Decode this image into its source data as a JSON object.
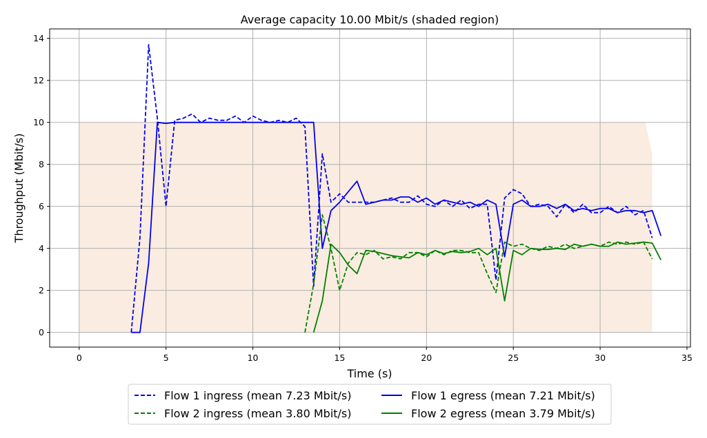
{
  "chart_data": {
    "type": "line",
    "title": "Average capacity 10.00 Mbit/s (shaded region)",
    "xlabel": "Time (s)",
    "ylabel": "Throughput (Mbit/s)",
    "xlim": [
      -1.7,
      35.2
    ],
    "ylim": [
      -0.7,
      14.45
    ],
    "xticks": [
      0,
      5,
      10,
      15,
      20,
      25,
      30,
      35
    ],
    "yticks": [
      0,
      2,
      4,
      6,
      8,
      10,
      12,
      14
    ],
    "grid": true,
    "legend_position": "bottom, below axes, two columns",
    "capacity_region": {
      "color": "#faece0",
      "points": [
        [
          0,
          0
        ],
        [
          0,
          10
        ],
        [
          32.6,
          10
        ],
        [
          33.0,
          8.5
        ],
        [
          33.0,
          0
        ]
      ]
    },
    "series": [
      {
        "name": "Flow 1 ingress (mean 7.23 Mbit/s)",
        "color": "#0000ee",
        "dashed": true,
        "points": [
          [
            3.0,
            0.0
          ],
          [
            3.5,
            4.5
          ],
          [
            4.0,
            13.7
          ],
          [
            4.5,
            10.2
          ],
          [
            5.0,
            6.0
          ],
          [
            5.5,
            10.1
          ],
          [
            6.0,
            10.2
          ],
          [
            6.5,
            10.4
          ],
          [
            7.0,
            10.0
          ],
          [
            7.5,
            10.2
          ],
          [
            8.0,
            10.1
          ],
          [
            8.5,
            10.1
          ],
          [
            9.0,
            10.3
          ],
          [
            9.5,
            10.0
          ],
          [
            10.0,
            10.3
          ],
          [
            10.5,
            10.1
          ],
          [
            11.0,
            10.0
          ],
          [
            11.5,
            10.1
          ],
          [
            12.0,
            10.0
          ],
          [
            12.5,
            10.2
          ],
          [
            13.0,
            9.8
          ],
          [
            13.5,
            2.2
          ],
          [
            14.0,
            8.5
          ],
          [
            14.5,
            6.2
          ],
          [
            15.0,
            6.6
          ],
          [
            15.5,
            6.2
          ],
          [
            16.0,
            6.2
          ],
          [
            16.5,
            6.2
          ],
          [
            17.0,
            6.2
          ],
          [
            17.5,
            6.3
          ],
          [
            18.0,
            6.4
          ],
          [
            18.5,
            6.2
          ],
          [
            19.0,
            6.2
          ],
          [
            19.5,
            6.5
          ],
          [
            20.0,
            6.1
          ],
          [
            20.5,
            6.0
          ],
          [
            21.0,
            6.3
          ],
          [
            21.5,
            6.0
          ],
          [
            22.0,
            6.3
          ],
          [
            22.5,
            5.9
          ],
          [
            23.0,
            6.1
          ],
          [
            23.5,
            6.1
          ],
          [
            24.0,
            2.5
          ],
          [
            24.5,
            6.4
          ],
          [
            25.0,
            6.8
          ],
          [
            25.5,
            6.6
          ],
          [
            26.0,
            6.0
          ],
          [
            26.5,
            6.1
          ],
          [
            27.0,
            6.0
          ],
          [
            27.5,
            5.5
          ],
          [
            28.0,
            6.1
          ],
          [
            28.5,
            5.7
          ],
          [
            29.0,
            6.1
          ],
          [
            29.5,
            5.7
          ],
          [
            30.0,
            5.7
          ],
          [
            30.5,
            6.0
          ],
          [
            31.0,
            5.7
          ],
          [
            31.5,
            6.0
          ],
          [
            32.0,
            5.6
          ],
          [
            32.5,
            5.8
          ],
          [
            33.0,
            4.5
          ]
        ]
      },
      {
        "name": "Flow 1 egress (mean 7.21 Mbit/s)",
        "color": "#0000ee",
        "dashed": false,
        "points": [
          [
            3.0,
            0.0
          ],
          [
            3.5,
            0.0
          ],
          [
            4.0,
            3.3
          ],
          [
            4.5,
            10.0
          ],
          [
            5.0,
            9.95
          ],
          [
            5.5,
            10.0
          ],
          [
            6.0,
            10.0
          ],
          [
            7.0,
            10.0
          ],
          [
            8.0,
            10.0
          ],
          [
            9.0,
            10.0
          ],
          [
            10.0,
            10.0
          ],
          [
            11.0,
            10.0
          ],
          [
            12.0,
            10.0
          ],
          [
            13.0,
            10.0
          ],
          [
            13.5,
            10.0
          ],
          [
            14.0,
            4.0
          ],
          [
            14.5,
            5.8
          ],
          [
            15.0,
            6.2
          ],
          [
            15.5,
            6.7
          ],
          [
            16.0,
            7.2
          ],
          [
            16.5,
            6.1
          ],
          [
            17.0,
            6.2
          ],
          [
            17.5,
            6.3
          ],
          [
            18.0,
            6.3
          ],
          [
            18.5,
            6.45
          ],
          [
            19.0,
            6.45
          ],
          [
            19.5,
            6.2
          ],
          [
            20.0,
            6.4
          ],
          [
            20.5,
            6.1
          ],
          [
            21.0,
            6.3
          ],
          [
            21.5,
            6.2
          ],
          [
            22.0,
            6.1
          ],
          [
            22.5,
            6.2
          ],
          [
            23.0,
            6.0
          ],
          [
            23.5,
            6.3
          ],
          [
            24.0,
            6.1
          ],
          [
            24.5,
            3.6
          ],
          [
            25.0,
            6.1
          ],
          [
            25.5,
            6.3
          ],
          [
            26.0,
            6.0
          ],
          [
            26.5,
            6.0
          ],
          [
            27.0,
            6.1
          ],
          [
            27.5,
            5.9
          ],
          [
            28.0,
            6.1
          ],
          [
            28.5,
            5.8
          ],
          [
            29.0,
            5.9
          ],
          [
            29.5,
            5.8
          ],
          [
            30.0,
            5.9
          ],
          [
            30.5,
            5.9
          ],
          [
            31.0,
            5.7
          ],
          [
            31.5,
            5.8
          ],
          [
            32.0,
            5.8
          ],
          [
            32.5,
            5.7
          ],
          [
            33.0,
            5.8
          ],
          [
            33.5,
            4.6
          ]
        ]
      },
      {
        "name": "Flow 2 ingress (mean 3.80 Mbit/s)",
        "color": "#008000",
        "dashed": true,
        "points": [
          [
            13.0,
            0.0
          ],
          [
            13.5,
            2.3
          ],
          [
            14.0,
            5.6
          ],
          [
            14.5,
            4.0
          ],
          [
            15.0,
            2.0
          ],
          [
            15.5,
            3.3
          ],
          [
            16.0,
            3.8
          ],
          [
            16.5,
            3.7
          ],
          [
            17.0,
            3.9
          ],
          [
            17.5,
            3.5
          ],
          [
            18.0,
            3.6
          ],
          [
            18.5,
            3.5
          ],
          [
            19.0,
            3.8
          ],
          [
            19.5,
            3.8
          ],
          [
            20.0,
            3.6
          ],
          [
            20.5,
            3.9
          ],
          [
            21.0,
            3.7
          ],
          [
            21.5,
            3.9
          ],
          [
            22.0,
            3.9
          ],
          [
            22.5,
            3.8
          ],
          [
            23.0,
            3.8
          ],
          [
            23.5,
            2.8
          ],
          [
            24.0,
            1.9
          ],
          [
            24.5,
            4.3
          ],
          [
            25.0,
            4.1
          ],
          [
            25.5,
            4.2
          ],
          [
            26.0,
            4.0
          ],
          [
            26.5,
            3.9
          ],
          [
            27.0,
            4.1
          ],
          [
            27.5,
            4.0
          ],
          [
            28.0,
            4.2
          ],
          [
            28.5,
            4.0
          ],
          [
            29.0,
            4.1
          ],
          [
            29.5,
            4.2
          ],
          [
            30.0,
            4.1
          ],
          [
            30.5,
            4.3
          ],
          [
            31.0,
            4.2
          ],
          [
            31.5,
            4.3
          ],
          [
            32.0,
            4.2
          ],
          [
            32.5,
            4.3
          ],
          [
            33.0,
            3.5
          ]
        ]
      },
      {
        "name": "Flow 2 egress (mean 3.79 Mbit/s)",
        "color": "#008000",
        "dashed": false,
        "points": [
          [
            13.5,
            0.0
          ],
          [
            14.0,
            1.5
          ],
          [
            14.5,
            4.2
          ],
          [
            15.0,
            3.8
          ],
          [
            15.5,
            3.2
          ],
          [
            16.0,
            2.8
          ],
          [
            16.5,
            3.9
          ],
          [
            17.0,
            3.85
          ],
          [
            17.5,
            3.75
          ],
          [
            18.0,
            3.65
          ],
          [
            18.5,
            3.6
          ],
          [
            19.0,
            3.55
          ],
          [
            19.5,
            3.8
          ],
          [
            20.0,
            3.7
          ],
          [
            20.5,
            3.9
          ],
          [
            21.0,
            3.75
          ],
          [
            21.5,
            3.85
          ],
          [
            22.0,
            3.8
          ],
          [
            22.5,
            3.85
          ],
          [
            23.0,
            4.0
          ],
          [
            23.5,
            3.7
          ],
          [
            24.0,
            4.0
          ],
          [
            24.5,
            1.5
          ],
          [
            25.0,
            3.9
          ],
          [
            25.5,
            3.7
          ],
          [
            26.0,
            4.0
          ],
          [
            26.5,
            3.95
          ],
          [
            27.0,
            3.95
          ],
          [
            27.5,
            4.0
          ],
          [
            28.0,
            3.95
          ],
          [
            28.5,
            4.2
          ],
          [
            29.0,
            4.1
          ],
          [
            29.5,
            4.2
          ],
          [
            30.0,
            4.1
          ],
          [
            30.5,
            4.1
          ],
          [
            31.0,
            4.3
          ],
          [
            31.5,
            4.2
          ],
          [
            32.0,
            4.25
          ],
          [
            32.5,
            4.3
          ],
          [
            33.0,
            4.25
          ],
          [
            33.5,
            3.45
          ]
        ]
      }
    ]
  }
}
